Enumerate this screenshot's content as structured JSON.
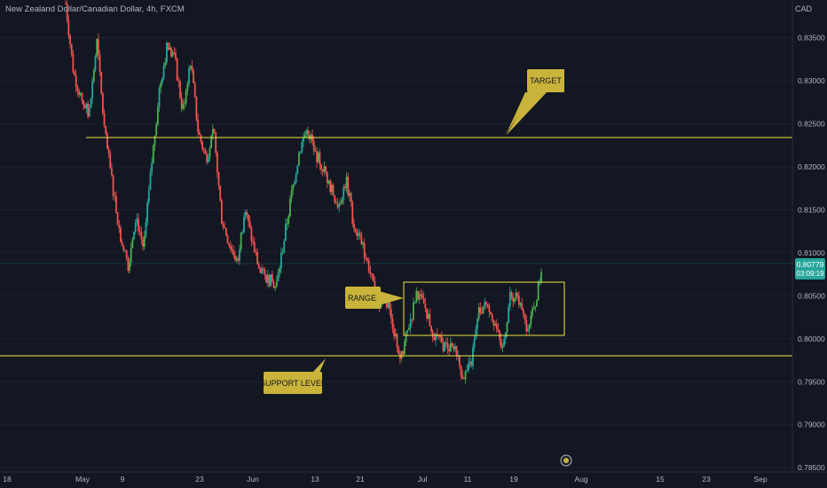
{
  "header": {
    "symbol_title": "New Zealand Dollar/Canadian Dollar, 4h, FXCM",
    "currency": "CAD"
  },
  "theme": {
    "background": "#131722",
    "up_color": "#26a69a",
    "up_bright": "#4caf50",
    "down_color": "#ef5350",
    "level_color": "#f0e442",
    "callout_color": "#c9b33b",
    "last_price_color": "#26a69a"
  },
  "chart_data": {
    "type": "candlestick",
    "yticks": [
      "0.83500",
      "0.83000",
      "0.82500",
      "0.82000",
      "0.81500",
      "0.81000",
      "0.80500",
      "0.80000",
      "0.79500",
      "0.79000",
      "0.78500"
    ],
    "ylim": [
      0.7845,
      0.8394
    ],
    "xticks": [
      "18",
      "May",
      "9",
      "23",
      "Jun",
      "13",
      "21",
      "Jul",
      "11",
      "19",
      "Aug",
      "15",
      "23",
      "Sep"
    ],
    "last_price": "0.80779",
    "countdown": "03:09:19",
    "levels": [
      {
        "name": "target",
        "price": 0.8226
      },
      {
        "name": "support",
        "price": 0.7969
      }
    ],
    "range_box": {
      "top": 0.8057,
      "bottom": 0.7994
    },
    "annotations": [
      "TARGET",
      "RANGE",
      "SUPPORT LEVEL"
    ],
    "series": [
      {
        "date": "Apr 27",
        "close": 0.839
      },
      {
        "date": "May 3",
        "close": 0.831
      },
      {
        "date": "May 6",
        "close": 0.828
      },
      {
        "date": "May 9",
        "close": 0.826
      },
      {
        "date": "May 11",
        "close": 0.8345
      },
      {
        "date": "May 13",
        "close": 0.824
      },
      {
        "date": "May 16",
        "close": 0.818
      },
      {
        "date": "May 19",
        "close": 0.812
      },
      {
        "date": "May 22",
        "close": 0.8085
      },
      {
        "date": "May 25",
        "close": 0.8145
      },
      {
        "date": "May 27",
        "close": 0.8105
      },
      {
        "date": "May 30",
        "close": 0.82
      },
      {
        "date": "Jun 2",
        "close": 0.829
      },
      {
        "date": "Jun 5",
        "close": 0.834
      },
      {
        "date": "Jun 7",
        "close": 0.8325
      },
      {
        "date": "Jun 10",
        "close": 0.8265
      },
      {
        "date": "Jun 12",
        "close": 0.8325
      },
      {
        "date": "Jun 14",
        "close": 0.824
      },
      {
        "date": "Jun 17",
        "close": 0.821
      },
      {
        "date": "Jun 20",
        "close": 0.824
      },
      {
        "date": "Jun 22",
        "close": 0.814
      },
      {
        "date": "Jun 25",
        "close": 0.811
      },
      {
        "date": "Jun 28",
        "close": 0.809
      },
      {
        "date": "Jul 1",
        "close": 0.815
      },
      {
        "date": "Jul 3",
        "close": 0.811
      },
      {
        "date": "Jul 6",
        "close": 0.8075
      },
      {
        "date": "Jul 8",
        "close": 0.807
      },
      {
        "date": "Jul 10",
        "close": 0.806
      },
      {
        "date": "Jul 12",
        "close": 0.8115
      },
      {
        "date": "Jul 14",
        "close": 0.817
      },
      {
        "date": "Jul 15",
        "close": 0.822
      },
      {
        "date": "Jul 16",
        "close": 0.8245
      },
      {
        "date": "Jul 17",
        "close": 0.8215
      },
      {
        "date": "Jul 19",
        "close": 0.82
      },
      {
        "date": "Jul 21",
        "close": 0.8175
      },
      {
        "date": "Jul 23",
        "close": 0.8155
      },
      {
        "date": "Jul 25",
        "close": 0.8185
      },
      {
        "date": "Jul 27",
        "close": 0.813
      },
      {
        "date": "Jul 29",
        "close": 0.811
      },
      {
        "date": "Jul 31",
        "close": 0.808
      },
      {
        "date": "Aug 2",
        "close": 0.8035
      },
      {
        "date": "Aug 4",
        "close": 0.805
      },
      {
        "date": "Aug 6",
        "close": 0.8015
      },
      {
        "date": "Aug 8",
        "close": 0.7975
      },
      {
        "date": "Aug 10",
        "close": 0.8015
      },
      {
        "date": "Aug 12",
        "close": 0.805
      },
      {
        "date": "Aug 14",
        "close": 0.804
      },
      {
        "date": "Aug 16",
        "close": 0.801
      },
      {
        "date": "Aug 18",
        "close": 0.7995
      },
      {
        "date": "Aug 20",
        "close": 0.799
      },
      {
        "date": "Aug 22",
        "close": 0.7985
      },
      {
        "date": "Aug 24",
        "close": 0.7955
      },
      {
        "date": "Aug 26",
        "close": 0.797
      },
      {
        "date": "Aug 28",
        "close": 0.803
      },
      {
        "date": "Aug 30",
        "close": 0.8045
      },
      {
        "date": "Sep 1",
        "close": 0.802
      },
      {
        "date": "Sep 3",
        "close": 0.7985
      },
      {
        "date": "Sep 5",
        "close": 0.805
      },
      {
        "date": "Sep 7",
        "close": 0.8045
      },
      {
        "date": "Sep 9",
        "close": 0.8015
      },
      {
        "date": "Sep 11",
        "close": 0.803
      },
      {
        "date": "Sep 13",
        "close": 0.8078
      }
    ]
  }
}
